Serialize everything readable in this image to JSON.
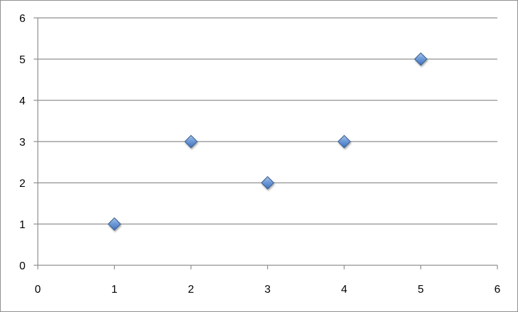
{
  "chart_data": {
    "type": "scatter",
    "title": "",
    "xlabel": "",
    "ylabel": "",
    "xlim": [
      0,
      6
    ],
    "ylim": [
      0,
      6
    ],
    "x_ticks": [
      0,
      1,
      2,
      3,
      4,
      5,
      6
    ],
    "y_ticks": [
      0,
      1,
      2,
      3,
      4,
      5,
      6
    ],
    "grid": "horizontal",
    "legend": "none",
    "series": [
      {
        "marker": "diamond",
        "color": "#4f81bd",
        "points": [
          {
            "x": 1,
            "y": 1
          },
          {
            "x": 2,
            "y": 3
          },
          {
            "x": 3,
            "y": 2
          },
          {
            "x": 4,
            "y": 3
          },
          {
            "x": 5,
            "y": 5
          }
        ]
      }
    ],
    "colors": {
      "marker_fill": "#4f81bd",
      "marker_stroke": "#385d8a",
      "gridline": "#8c8c8c",
      "axis": "#8c8c8c"
    }
  }
}
